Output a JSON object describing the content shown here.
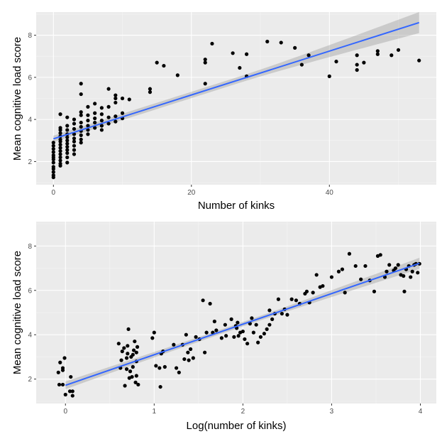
{
  "colors": {
    "panel_background": "#ebebeb",
    "grid": "#ffffff",
    "points": "#000000",
    "fit_line": "#3366ff",
    "confidence_band": "#999999"
  },
  "chart_data": [
    {
      "type": "scatter",
      "title": "",
      "xlabel": "Number of kinks",
      "ylabel": "Mean cognitive load score",
      "xlim": [
        -2.5,
        55.5
      ],
      "ylim": [
        0.9,
        9.1
      ],
      "x_ticks": [
        0,
        20,
        40
      ],
      "x_tick_labels": [
        "0",
        "20",
        "40"
      ],
      "y_ticks": [
        2,
        4,
        6,
        8
      ],
      "y_tick_labels": [
        "2",
        "4",
        "6",
        "8"
      ],
      "grid": true,
      "smooth": {
        "method": "linear",
        "x_range": [
          0,
          53
        ],
        "start": 3.08,
        "end": 8.6,
        "band_start": [
          2.93,
          3.23
        ],
        "band_mid": [
          4.9,
          5.2
        ],
        "band_end": [
          8.0,
          9.0
        ]
      },
      "points": [
        [
          0,
          1.25
        ],
        [
          0,
          1.35
        ],
        [
          0,
          1.5
        ],
        [
          0,
          1.65
        ],
        [
          0,
          1.75
        ],
        [
          0,
          1.95
        ],
        [
          0,
          2.1
        ],
        [
          0,
          2.2
        ],
        [
          0,
          2.3
        ],
        [
          0,
          2.45
        ],
        [
          0,
          2.6
        ],
        [
          0,
          2.75
        ],
        [
          0,
          2.9
        ],
        [
          1,
          1.8
        ],
        [
          1,
          1.9
        ],
        [
          1,
          2.05
        ],
        [
          1,
          2.2
        ],
        [
          1,
          2.35
        ],
        [
          1,
          2.5
        ],
        [
          1,
          2.65
        ],
        [
          1,
          2.8
        ],
        [
          1,
          2.95
        ],
        [
          1,
          3.05
        ],
        [
          1,
          3.2
        ],
        [
          1,
          3.35
        ],
        [
          1,
          3.5
        ],
        [
          1,
          3.6
        ],
        [
          1,
          4.25
        ],
        [
          2,
          1.95
        ],
        [
          2,
          2.2
        ],
        [
          2,
          2.4
        ],
        [
          2,
          2.55
        ],
        [
          2,
          2.7
        ],
        [
          2,
          2.85
        ],
        [
          2,
          3.0
        ],
        [
          2,
          3.15
        ],
        [
          2,
          3.3
        ],
        [
          2,
          3.5
        ],
        [
          2,
          3.7
        ],
        [
          2,
          4.1
        ],
        [
          3,
          2.35
        ],
        [
          3,
          2.55
        ],
        [
          3,
          2.75
        ],
        [
          3,
          2.95
        ],
        [
          3,
          3.1
        ],
        [
          3,
          3.3
        ],
        [
          3,
          3.55
        ],
        [
          3,
          3.8
        ],
        [
          3,
          4.0
        ],
        [
          4,
          2.9
        ],
        [
          4,
          3.05
        ],
        [
          4,
          3.25
        ],
        [
          4,
          3.45
        ],
        [
          4,
          3.65
        ],
        [
          4,
          3.85
        ],
        [
          4,
          4.2
        ],
        [
          4,
          4.35
        ],
        [
          4,
          5.2
        ],
        [
          4,
          5.7
        ],
        [
          5,
          3.3
        ],
        [
          5,
          3.5
        ],
        [
          5,
          3.7
        ],
        [
          5,
          3.95
        ],
        [
          5,
          4.2
        ],
        [
          5,
          4.6
        ],
        [
          6,
          3.6
        ],
        [
          6,
          3.85
        ],
        [
          6,
          4.05
        ],
        [
          6,
          4.3
        ],
        [
          6,
          4.75
        ],
        [
          7,
          3.5
        ],
        [
          7,
          3.7
        ],
        [
          7,
          3.95
        ],
        [
          7,
          4.25
        ],
        [
          7,
          4.55
        ],
        [
          8,
          3.8
        ],
        [
          8,
          4.1
        ],
        [
          8,
          4.6
        ],
        [
          8,
          5.45
        ],
        [
          9,
          3.9
        ],
        [
          9,
          4.15
        ],
        [
          9,
          4.8
        ],
        [
          9,
          5.0
        ],
        [
          9,
          5.15
        ],
        [
          10,
          4.05
        ],
        [
          10,
          4.3
        ],
        [
          10,
          5.0
        ],
        [
          11,
          4.95
        ],
        [
          14,
          5.3
        ],
        [
          14,
          5.45
        ],
        [
          15,
          6.7
        ],
        [
          16,
          6.55
        ],
        [
          18,
          6.1
        ],
        [
          22,
          5.7
        ],
        [
          22,
          6.7
        ],
        [
          22,
          6.85
        ],
        [
          23,
          7.6
        ],
        [
          26,
          7.15
        ],
        [
          27,
          6.45
        ],
        [
          28,
          7.1
        ],
        [
          28,
          6.05
        ],
        [
          31,
          7.7
        ],
        [
          33,
          7.65
        ],
        [
          35,
          7.4
        ],
        [
          36,
          6.6
        ],
        [
          37,
          7.05
        ],
        [
          40,
          6.05
        ],
        [
          41,
          6.75
        ],
        [
          44,
          6.35
        ],
        [
          44,
          6.6
        ],
        [
          44,
          7.05
        ],
        [
          45,
          6.7
        ],
        [
          47,
          7.1
        ],
        [
          47,
          7.25
        ],
        [
          49,
          7.05
        ],
        [
          50,
          7.3
        ],
        [
          53,
          6.8
        ]
      ]
    },
    {
      "type": "scatter",
      "title": "",
      "xlabel": "Log(number of kinks)",
      "ylabel": "Mean cognitive load score",
      "xlim": [
        -0.33,
        4.18
      ],
      "ylim": [
        0.9,
        9.1
      ],
      "x_ticks": [
        0,
        1,
        2,
        3,
        4
      ],
      "x_tick_labels": [
        "0",
        "1",
        "2",
        "3",
        "4"
      ],
      "y_ticks": [
        2,
        4,
        6,
        8
      ],
      "y_tick_labels": [
        "2",
        "4",
        "6",
        "8"
      ],
      "grid": true,
      "smooth": {
        "method": "linear",
        "x_range": [
          0,
          3.99
        ],
        "start": 1.72,
        "end": 7.22,
        "band_start": [
          1.55,
          1.9
        ],
        "band_mid": [
          4.35,
          4.55
        ],
        "band_end": [
          6.95,
          7.45
        ]
      },
      "points": [
        [
          -0.08,
          2.3
        ],
        [
          -0.07,
          1.75
        ],
        [
          -0.06,
          2.75
        ],
        [
          -0.03,
          2.4
        ],
        [
          -0.01,
          2.95
        ],
        [
          -0.03,
          1.75
        ],
        [
          -0.03,
          2.5
        ],
        [
          0.0,
          1.3
        ],
        [
          0.05,
          1.45
        ],
        [
          0.06,
          2.1
        ],
        [
          0.08,
          1.25
        ],
        [
          0.08,
          1.45
        ],
        [
          0.6,
          3.6
        ],
        [
          0.62,
          2.5
        ],
        [
          0.63,
          2.85
        ],
        [
          0.64,
          3.25
        ],
        [
          0.66,
          3.4
        ],
        [
          0.67,
          1.7
        ],
        [
          0.69,
          2.45
        ],
        [
          0.69,
          2.95
        ],
        [
          0.7,
          3.15
        ],
        [
          0.7,
          3.5
        ],
        [
          0.71,
          4.25
        ],
        [
          0.72,
          2.05
        ],
        [
          0.73,
          2.35
        ],
        [
          0.74,
          3.0
        ],
        [
          0.75,
          2.1
        ],
        [
          0.76,
          2.55
        ],
        [
          0.76,
          3.1
        ],
        [
          0.77,
          3.3
        ],
        [
          0.78,
          3.7
        ],
        [
          0.79,
          1.85
        ],
        [
          0.8,
          2.15
        ],
        [
          0.8,
          2.8
        ],
        [
          0.8,
          3.2
        ],
        [
          0.81,
          3.45
        ],
        [
          0.82,
          1.75
        ],
        [
          0.98,
          3.85
        ],
        [
          1.0,
          4.1
        ],
        [
          1.02,
          2.6
        ],
        [
          1.06,
          2.5
        ],
        [
          1.07,
          1.65
        ],
        [
          1.08,
          3.15
        ],
        [
          1.1,
          3.25
        ],
        [
          1.12,
          2.55
        ],
        [
          1.22,
          3.55
        ],
        [
          1.25,
          2.5
        ],
        [
          1.28,
          2.3
        ],
        [
          1.32,
          3.55
        ],
        [
          1.34,
          2.9
        ],
        [
          1.36,
          4.0
        ],
        [
          1.38,
          3.2
        ],
        [
          1.39,
          2.85
        ],
        [
          1.41,
          3.35
        ],
        [
          1.44,
          2.95
        ],
        [
          1.47,
          3.9
        ],
        [
          1.51,
          3.8
        ],
        [
          1.55,
          5.55
        ],
        [
          1.57,
          3.2
        ],
        [
          1.59,
          4.1
        ],
        [
          1.63,
          5.4
        ],
        [
          1.66,
          4.1
        ],
        [
          1.68,
          4.6
        ],
        [
          1.7,
          4.2
        ],
        [
          1.76,
          3.85
        ],
        [
          1.8,
          4.45
        ],
        [
          1.81,
          3.95
        ],
        [
          1.87,
          4.7
        ],
        [
          1.9,
          3.9
        ],
        [
          1.92,
          4.4
        ],
        [
          1.93,
          4.3
        ],
        [
          1.94,
          4.55
        ],
        [
          1.95,
          3.95
        ],
        [
          1.97,
          4.1
        ],
        [
          2.0,
          4.15
        ],
        [
          2.02,
          3.8
        ],
        [
          2.05,
          3.6
        ],
        [
          2.08,
          4.5
        ],
        [
          2.1,
          4.75
        ],
        [
          2.12,
          4.1
        ],
        [
          2.15,
          4.45
        ],
        [
          2.17,
          3.65
        ],
        [
          2.2,
          3.9
        ],
        [
          2.24,
          4.05
        ],
        [
          2.27,
          4.25
        ],
        [
          2.3,
          5.1
        ],
        [
          2.3,
          4.45
        ],
        [
          2.33,
          4.7
        ],
        [
          2.36,
          4.95
        ],
        [
          2.4,
          5.6
        ],
        [
          2.44,
          4.95
        ],
        [
          2.47,
          5.15
        ],
        [
          2.5,
          4.9
        ],
        [
          2.55,
          5.6
        ],
        [
          2.6,
          5.55
        ],
        [
          2.64,
          5.4
        ],
        [
          2.7,
          5.85
        ],
        [
          2.72,
          5.95
        ],
        [
          2.75,
          5.45
        ],
        [
          2.79,
          5.9
        ],
        [
          2.83,
          6.7
        ],
        [
          2.87,
          6.15
        ],
        [
          2.9,
          6.2
        ],
        [
          3.0,
          6.6
        ],
        [
          3.08,
          6.85
        ],
        [
          3.12,
          6.95
        ],
        [
          3.15,
          5.9
        ],
        [
          3.2,
          7.65
        ],
        [
          3.27,
          7.1
        ],
        [
          3.33,
          6.5
        ],
        [
          3.38,
          7.1
        ],
        [
          3.43,
          6.45
        ],
        [
          3.48,
          5.95
        ],
        [
          3.52,
          7.55
        ],
        [
          3.55,
          7.6
        ],
        [
          3.6,
          6.6
        ],
        [
          3.62,
          6.85
        ],
        [
          3.65,
          7.15
        ],
        [
          3.7,
          6.9
        ],
        [
          3.72,
          7.0
        ],
        [
          3.75,
          7.15
        ],
        [
          3.78,
          6.7
        ],
        [
          3.81,
          6.65
        ],
        [
          3.82,
          5.95
        ],
        [
          3.84,
          6.95
        ],
        [
          3.87,
          7.1
        ],
        [
          3.89,
          6.6
        ],
        [
          3.91,
          6.85
        ],
        [
          3.93,
          7.15
        ],
        [
          3.95,
          7.2
        ],
        [
          3.97,
          6.8
        ],
        [
          3.99,
          7.2
        ]
      ]
    }
  ]
}
